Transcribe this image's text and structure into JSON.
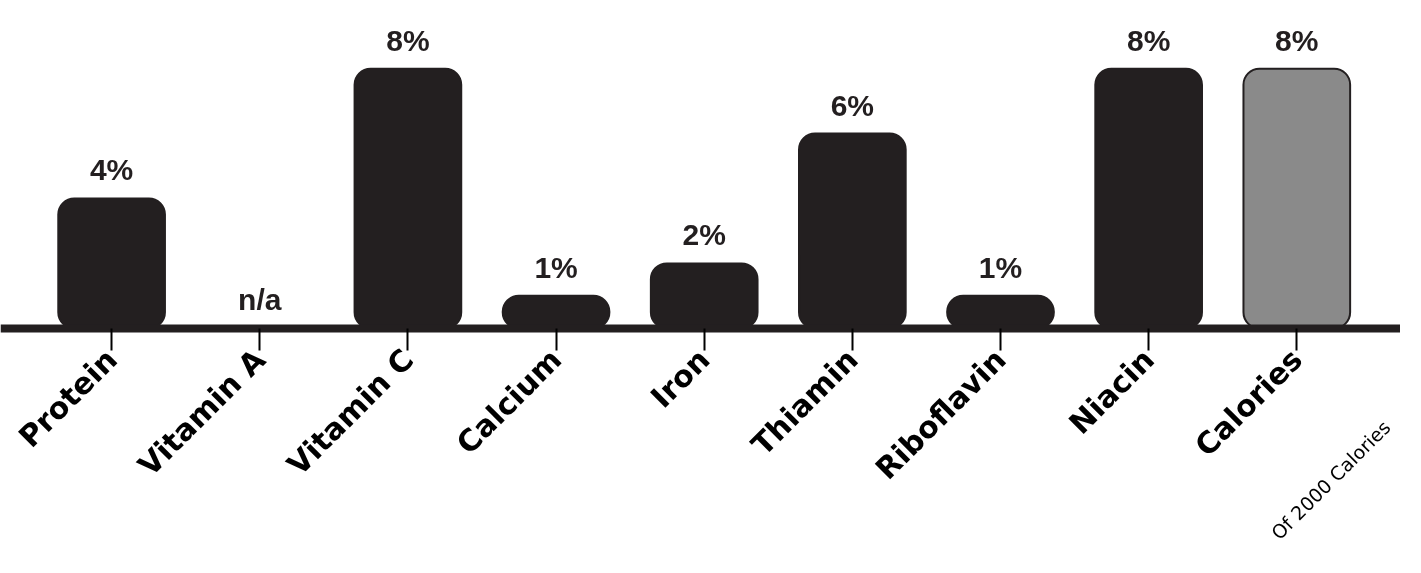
{
  "chart_data": {
    "type": "bar",
    "categories": [
      "Protein",
      "Vitamin A",
      "Vitamin C",
      "Calcium",
      "Iron",
      "Thiamin",
      "Riboflavin",
      "Niacin",
      "Calories"
    ],
    "values": [
      4,
      null,
      8,
      1,
      2,
      6,
      1,
      8,
      8
    ],
    "colors": [
      "#231f20",
      "#231f20",
      "#231f20",
      "#231f20",
      "#231f20",
      "#231f20",
      "#231f20",
      "#231f20",
      "#8a8a8a"
    ],
    "value_labels": [
      "4%",
      "n/a",
      "8%",
      "1%",
      "2%",
      "6%",
      "1%",
      "8%",
      "8%"
    ],
    "annotations": [
      "Of 2000 Calories"
    ],
    "grid": false
  }
}
